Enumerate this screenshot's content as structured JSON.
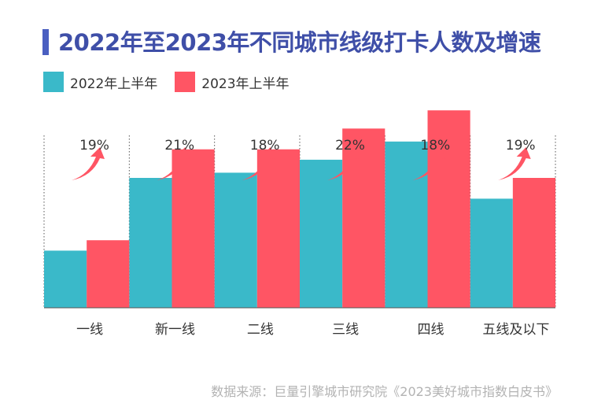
{
  "title": "2022年至2023年不同城市线级打卡人数及增速",
  "colors": {
    "series_2022": "#3ab9c9",
    "series_2023": "#ff5564",
    "title": "#3f4fa8",
    "arrow": "#ff5564"
  },
  "chart_data": {
    "type": "bar",
    "title": "2022年至2023年不同城市线级打卡人数及增速",
    "xlabel": "",
    "ylabel": "",
    "categories": [
      "一线",
      "新一线",
      "二线",
      "三线",
      "四线",
      "五线及以下"
    ],
    "series": [
      {
        "name": "2022年上半年",
        "values": [
          22,
          50,
          52,
          57,
          64,
          42
        ]
      },
      {
        "name": "2023年上半年",
        "values": [
          26,
          61,
          61,
          69,
          76,
          50
        ]
      }
    ],
    "growth_labels": [
      "19%",
      "21%",
      "18%",
      "22%",
      "18%",
      "19%"
    ],
    "ylim": [
      0,
      100
    ],
    "grid": false,
    "legend_position": "top-left",
    "y_axis_visible": false
  },
  "source": "数据来源：巨量引擎城市研究院《2023美好城市指数白皮书》"
}
